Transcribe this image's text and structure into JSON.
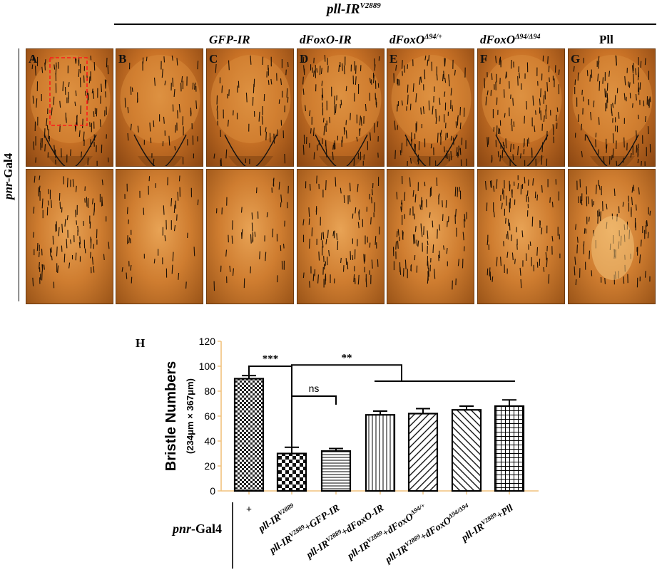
{
  "figure": {
    "group_label": "pll-IR",
    "group_sup": "V2889",
    "row_label_italic": "pnr",
    "row_label_rest": "-Gal4",
    "panels": [
      {
        "letter": "A",
        "header": ""
      },
      {
        "letter": "B",
        "header": ""
      },
      {
        "letter": "C",
        "header": "GFP-IR"
      },
      {
        "letter": "D",
        "header": "dFoxO-IR"
      },
      {
        "letter": "E",
        "header": "dFoxO",
        "sup": "Δ94/+"
      },
      {
        "letter": "F",
        "header": "dFoxO",
        "sup": "Δ94/Δ94"
      },
      {
        "letter": "G",
        "header": "Pll"
      }
    ]
  },
  "chart_data": {
    "type": "bar",
    "panel_letter": "H",
    "ylabel": "Bristle Numbers",
    "ylabel_sub": "(234μm × 367μm)",
    "ylim": [
      0,
      120
    ],
    "yticks": [
      0,
      20,
      40,
      60,
      80,
      100,
      120
    ],
    "row_label_italic": "pnr",
    "row_label_rest": "-Gal4",
    "categories": [
      {
        "parts": [
          {
            "t": "+"
          }
        ]
      },
      {
        "parts": [
          {
            "t": "pll-IR"
          },
          {
            "t": "V2889",
            "sup": true
          }
        ]
      },
      {
        "parts": [
          {
            "t": "pll-IR"
          },
          {
            "t": "V2889",
            "sup": true
          },
          {
            "t": "+GFP-IR"
          }
        ]
      },
      {
        "parts": [
          {
            "t": "pll-IR"
          },
          {
            "t": "V2889",
            "sup": true
          },
          {
            "t": "+dFoxO-IR"
          }
        ]
      },
      {
        "parts": [
          {
            "t": "pll-IR"
          },
          {
            "t": "V2889",
            "sup": true
          },
          {
            "t": "+dFoxO"
          },
          {
            "t": "Δ94/+",
            "sup": true
          }
        ]
      },
      {
        "parts": [
          {
            "t": "pll-IR"
          },
          {
            "t": "V2889",
            "sup": true
          },
          {
            "t": "+dFoxO"
          },
          {
            "t": "Δ94/Δ94",
            "sup": true
          }
        ]
      },
      {
        "parts": [
          {
            "t": "pll-IR"
          },
          {
            "t": "V2889",
            "sup": true
          },
          {
            "t": "+Pll"
          }
        ]
      }
    ],
    "values": [
      90,
      30,
      32,
      61,
      62,
      65,
      68
    ],
    "errors": [
      2.5,
      5,
      2,
      3,
      4,
      3,
      5
    ],
    "patterns": [
      "checker",
      "checker-large",
      "hlines",
      "vlines",
      "diag-back",
      "diag-fwd",
      "grid"
    ],
    "significance": [
      {
        "label": "***",
        "from": 0,
        "to": 1,
        "y": 100
      },
      {
        "label": "ns",
        "from": 1,
        "to": 2,
        "y": 76
      },
      {
        "label": "**",
        "from": 1,
        "to": 3.5,
        "y": 101,
        "subgroup_from": 3,
        "subgroup_to": 6,
        "subgroup_y": 88
      }
    ]
  }
}
